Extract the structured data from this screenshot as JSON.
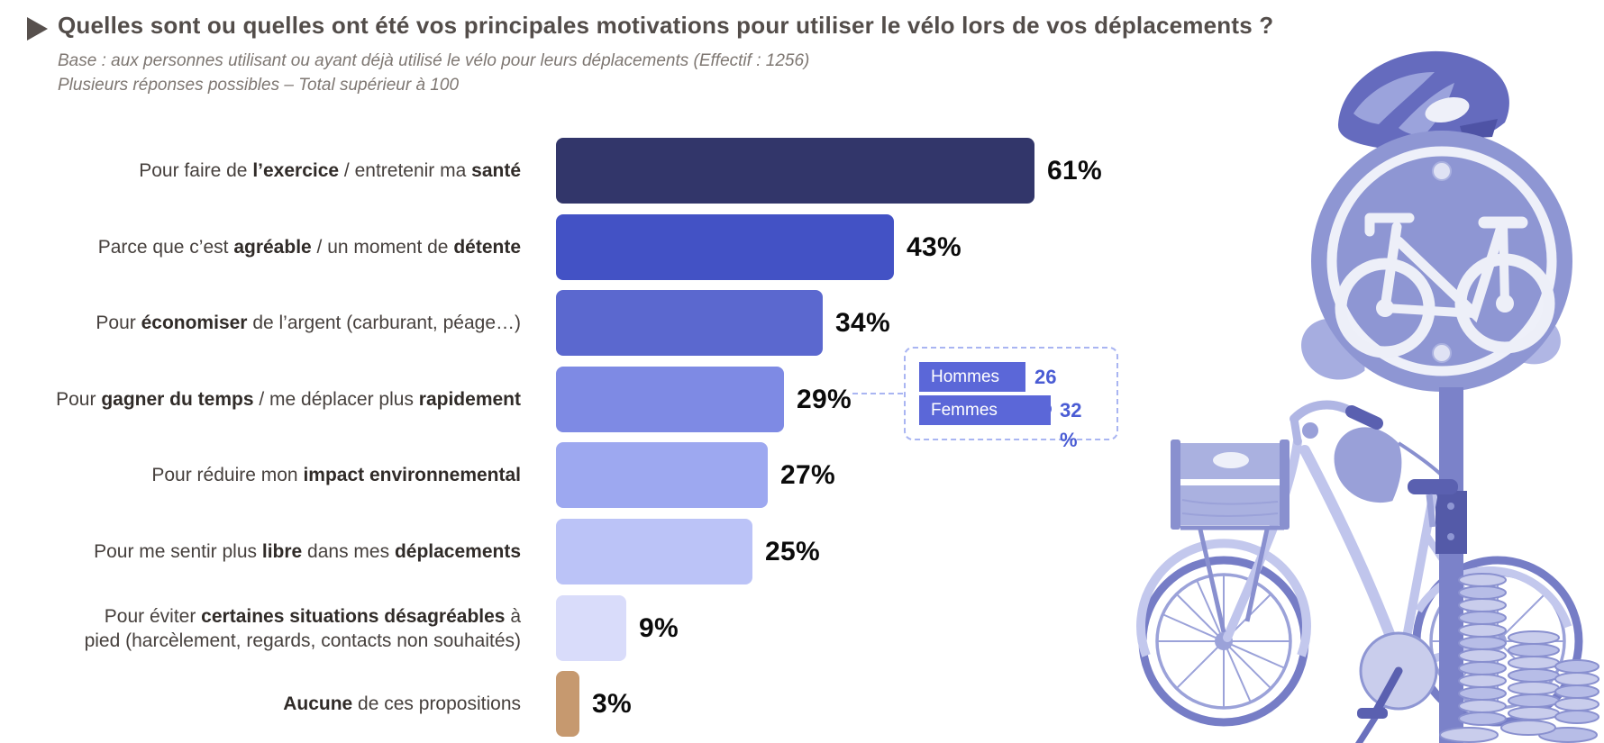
{
  "header": {
    "bullet_icon": "play-triangle",
    "title": "Quelles sont ou quelles ont été vos principales motivations pour utiliser le vélo lors de vos déplacements ?",
    "subtitle_line1": "Base : aux personnes utilisant ou ayant déjà utilisé le vélo pour leurs déplacements (Effectif : 1256)",
    "subtitle_line2": "Plusieurs réponses possibles – Total supérieur à 100"
  },
  "chart_data": {
    "type": "bar",
    "orientation": "horizontal",
    "title": "Principales motivations pour utiliser le vélo lors des déplacements",
    "unit": "%",
    "xlim": [
      0,
      61
    ],
    "grid": false,
    "legend": "none",
    "categories": [
      "Pour faire de l’exercice / entretenir ma santé",
      "Parce que c’est agréable / un moment de détente",
      "Pour économiser de l’argent (carburant, péage…)",
      "Pour gagner du temps / me déplacer plus rapidement",
      "Pour réduire mon impact environnemental",
      "Pour me sentir plus libre dans mes déplacements",
      "Pour éviter certaines situations désagréables à pied (harcèlement, regards, contacts non souhaités)",
      "Aucune de ces propositions"
    ],
    "values": [
      61,
      43,
      34,
      29,
      27,
      25,
      9,
      3
    ],
    "rows": [
      {
        "parts": [
          {
            "t": "Pour faire de "
          },
          {
            "t": "l’exercice",
            "b": true
          },
          {
            "t": " / entretenir ma "
          },
          {
            "t": "santé",
            "b": true
          }
        ],
        "value": 61,
        "value_label": "61%",
        "color": "#32366a"
      },
      {
        "parts": [
          {
            "t": "Parce que c’est "
          },
          {
            "t": "agréable",
            "b": true
          },
          {
            "t": " / un moment de "
          },
          {
            "t": "détente",
            "b": true
          }
        ],
        "value": 43,
        "value_label": "43%",
        "color": "#4352c5"
      },
      {
        "parts": [
          {
            "t": "Pour "
          },
          {
            "t": "économiser",
            "b": true
          },
          {
            "t": " de l’argent (carburant, péage…)"
          }
        ],
        "value": 34,
        "value_label": "34%",
        "color": "#5b68cf"
      },
      {
        "parts": [
          {
            "t": "Pour "
          },
          {
            "t": "gagner du temps",
            "b": true
          },
          {
            "t": " / me déplacer plus "
          },
          {
            "t": "rapidement",
            "b": true
          }
        ],
        "value": 29,
        "value_label": "29%",
        "color": "#7e8ae4"
      },
      {
        "parts": [
          {
            "t": "Pour réduire mon "
          },
          {
            "t": "impact environnemental",
            "b": true
          }
        ],
        "value": 27,
        "value_label": "27%",
        "color": "#9da8f0"
      },
      {
        "parts": [
          {
            "t": "Pour me sentir plus "
          },
          {
            "t": "libre",
            "b": true
          },
          {
            "t": " dans mes "
          },
          {
            "t": "déplacements",
            "b": true
          }
        ],
        "value": 25,
        "value_label": "25%",
        "color": "#bbc3f7"
      },
      {
        "parts": [
          {
            "t": "Pour éviter "
          },
          {
            "t": "certaines situations désagréables",
            "b": true
          },
          {
            "t": " à"
          },
          {
            "br": true
          },
          {
            "t": "pied (harcèlement, regards, contacts non souhaités)"
          }
        ],
        "value": 9,
        "value_label": "9%",
        "color": "#d9dcfa"
      },
      {
        "parts": [
          {
            "t": "Aucune",
            "b": true
          },
          {
            "t": " de ces propositions"
          }
        ],
        "value": 3,
        "value_label": "3%",
        "color": "#c6996f"
      }
    ],
    "callout": {
      "attached_category": "Pour gagner du temps / me déplacer plus rapidement",
      "series": [
        {
          "name": "Hommes",
          "value": 26,
          "value_label": "26 %"
        },
        {
          "name": "Femmes",
          "value": 32,
          "value_label": "32 %"
        }
      ],
      "bar_color": "#5b67d8",
      "value_color": "#4a5cd4",
      "border_color": "#a9b5f2"
    },
    "colors": {
      "value_text": "#0b0b0b",
      "title_text": "#534d4a",
      "label_text": "#46403d",
      "subtitle_text": "#7e7772",
      "none_option_bar": "#c6996f",
      "illustration_tint": "#8e96d3"
    }
  },
  "illustration": {
    "description": "duotone periwinkle photo montage: bicycle helmet resting on a round bicycle road sign, sign post, leaves, dutch bike with wooden crate, stacks of coins",
    "icons": [
      "helmet-icon",
      "bicycle-sign-icon",
      "bicycle-icon",
      "leaves-icon",
      "coins-icon"
    ]
  }
}
